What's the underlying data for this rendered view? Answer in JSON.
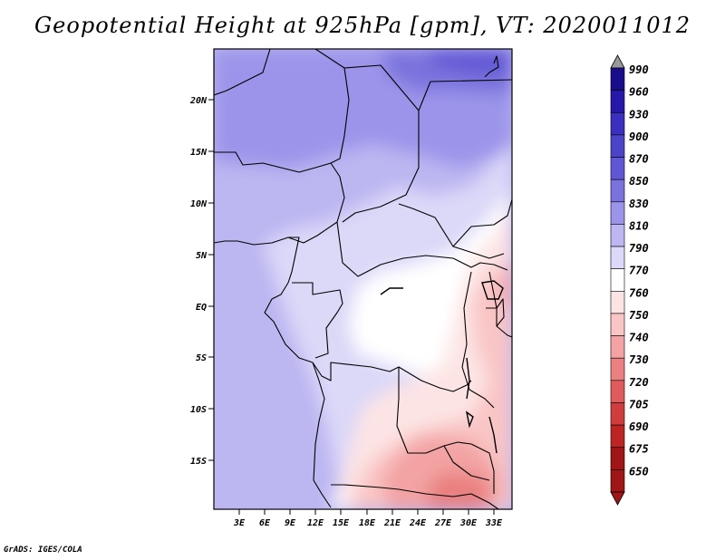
{
  "title": "Geopotential Height at 925hPa [gpm], VT: 2020011012",
  "credit": "GrADS: IGES/COLA",
  "map": {
    "lat_labels": [
      "20N",
      "15N",
      "10N",
      "5N",
      "EQ",
      "5S",
      "10S",
      "15S"
    ],
    "lon_labels": [
      "3E",
      "6E",
      "9E",
      "12E",
      "15E",
      "18E",
      "21E",
      "24E",
      "27E",
      "30E",
      "33E"
    ]
  },
  "colorbar": {
    "levels": [
      "990",
      "960",
      "930",
      "900",
      "870",
      "850",
      "830",
      "810",
      "790",
      "770",
      "760",
      "750",
      "740",
      "730",
      "720",
      "705",
      "690",
      "675",
      "650"
    ],
    "colors": [
      "#9a9a9a",
      "#1a0d8c",
      "#2618a8",
      "#3a2fbe",
      "#4b44c9",
      "#6057d4",
      "#7a73dd",
      "#9b94ea",
      "#bcb6f1",
      "#dbd8f8",
      "#ffffff",
      "#fde4e4",
      "#f9c5c5",
      "#f3a3a3",
      "#ea8080",
      "#df5c5c",
      "#cf3d3d",
      "#bd2525",
      "#a01515",
      "#a01515"
    ]
  }
}
